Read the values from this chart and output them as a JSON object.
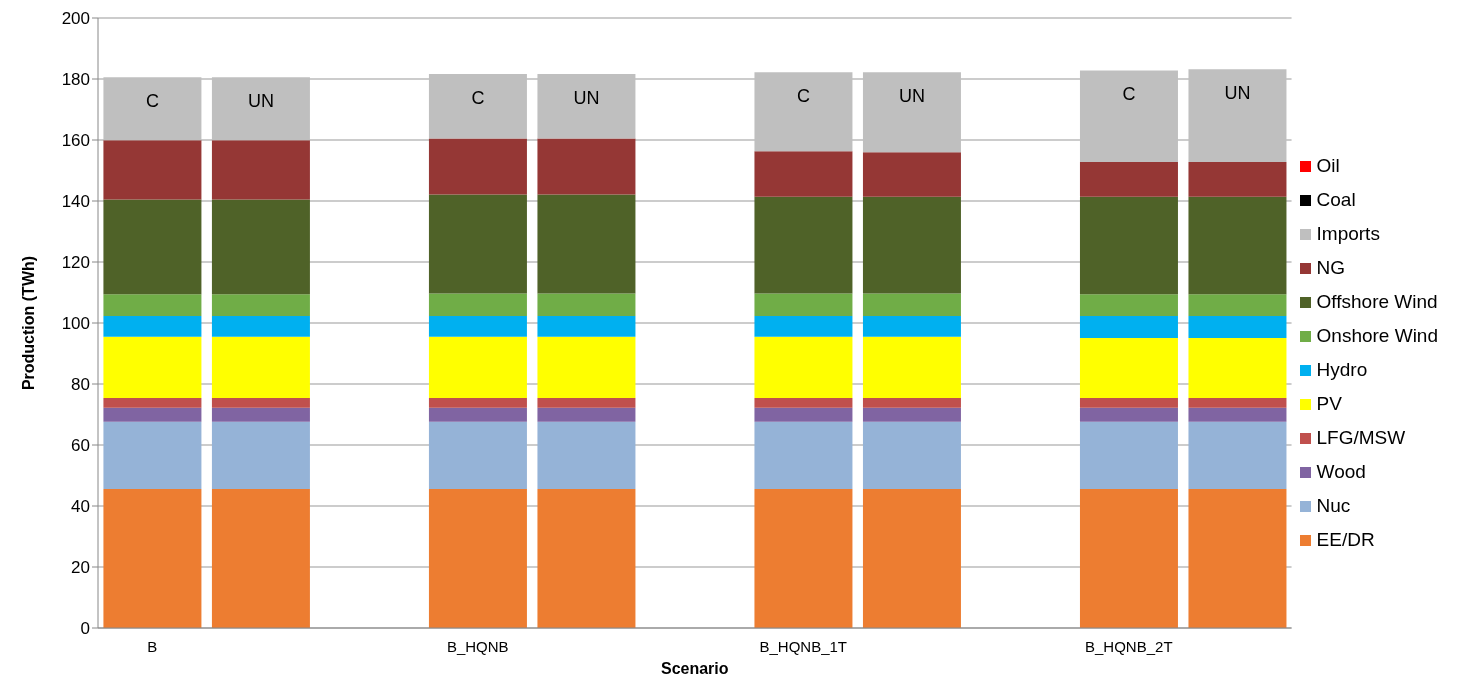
{
  "chart_data": {
    "type": "bar",
    "stacked": true,
    "xlabel": "Scenario",
    "ylabel": "Production (TWh)",
    "categories": [
      "C",
      "UN",
      null,
      "C",
      "UN",
      null,
      "C",
      "UN",
      null,
      "C",
      "UN"
    ],
    "annotations": [
      "B",
      "B_HQNB",
      "B_HQNB_1T",
      "B_HQNB_2T"
    ],
    "series": [
      {
        "name": "EE/DR",
        "color": "#ed7d31",
        "values": [
          45.6,
          45.6,
          null,
          45.6,
          45.6,
          null,
          45.6,
          45.6,
          null,
          45.6,
          45.6
        ]
      },
      {
        "name": "Nuc",
        "color": "#95b3d7",
        "values": [
          22.0,
          22.0,
          null,
          22.0,
          22.0,
          null,
          22.0,
          22.0,
          null,
          22.0,
          22.0
        ]
      },
      {
        "name": "Wood",
        "color": "#8064a2",
        "values": [
          4.6,
          4.6,
          null,
          4.6,
          4.6,
          null,
          4.6,
          4.6,
          null,
          4.6,
          4.6
        ]
      },
      {
        "name": "LFG/MSW",
        "color": "#c0504d",
        "values": [
          3.2,
          3.2,
          null,
          3.2,
          3.2,
          null,
          3.2,
          3.2,
          null,
          3.2,
          3.2
        ]
      },
      {
        "name": "PV",
        "color": "#ffff00",
        "values": [
          20.1,
          20.1,
          null,
          20.1,
          20.1,
          null,
          20.1,
          20.1,
          null,
          19.7,
          19.7
        ]
      },
      {
        "name": "Hydro",
        "color": "#00b0f0",
        "values": [
          6.8,
          6.8,
          null,
          6.8,
          6.8,
          null,
          6.8,
          6.8,
          null,
          7.2,
          7.2
        ]
      },
      {
        "name": "Onshore Wind",
        "color": "#70ad47",
        "values": [
          7.1,
          7.1,
          null,
          7.4,
          7.4,
          null,
          7.4,
          7.4,
          null,
          7.1,
          7.1
        ]
      },
      {
        "name": "Offshore Wind",
        "color": "#4f6228",
        "values": [
          31.1,
          31.1,
          null,
          32.4,
          32.4,
          null,
          31.7,
          31.7,
          null,
          32.0,
          32.0
        ]
      },
      {
        "name": "NG",
        "color": "#953735",
        "values": [
          19.4,
          19.4,
          null,
          18.4,
          18.4,
          null,
          14.9,
          14.6,
          null,
          11.4,
          11.4
        ]
      },
      {
        "name": "Imports",
        "color": "#bfbfbf",
        "values": [
          20.7,
          20.7,
          null,
          21.1,
          21.1,
          null,
          25.9,
          26.2,
          null,
          30.0,
          30.4
        ]
      },
      {
        "name": "Coal",
        "color": "#000000",
        "values": [
          0,
          0,
          null,
          0,
          0,
          null,
          0,
          0,
          null,
          0,
          0
        ]
      },
      {
        "name": "Oil",
        "color": "#ff0000",
        "values": [
          0,
          0,
          null,
          0,
          0,
          null,
          0,
          0,
          null,
          0,
          0
        ]
      }
    ],
    "ylim": [
      0,
      200
    ],
    "yticks": [
      0,
      20,
      40,
      60,
      80,
      100,
      120,
      140,
      160,
      180,
      200
    ],
    "grid": "y",
    "legend": "right"
  }
}
